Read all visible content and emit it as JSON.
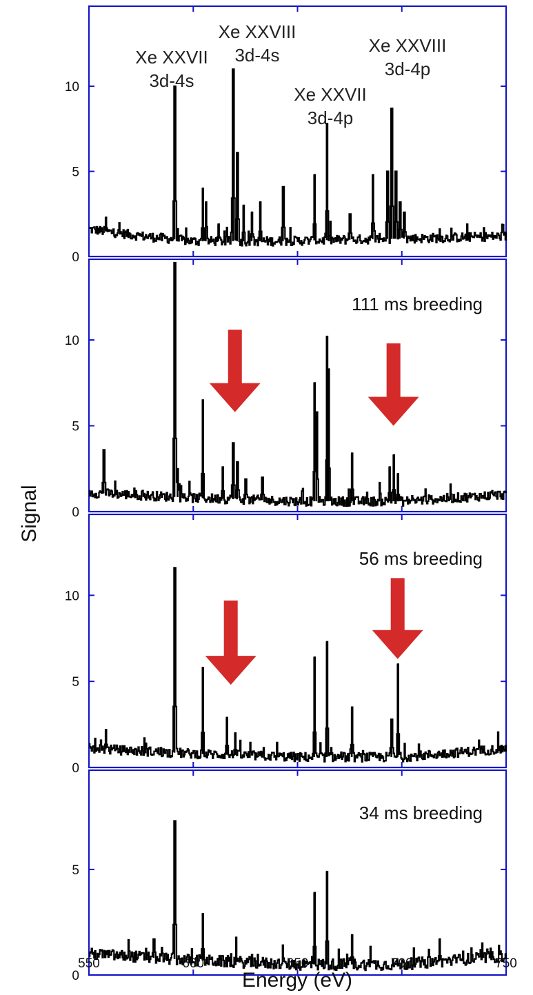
{
  "chart_data": {
    "type": "line",
    "xlabel": "Energy (eV)",
    "ylabel": "Signal",
    "xlim": [
      550,
      750
    ],
    "x_ticks": [
      550,
      600,
      650,
      700,
      750
    ],
    "colors": {
      "frame": "#1414c8",
      "trace": "#000000",
      "arrow": "#d42a2a"
    },
    "panels": [
      {
        "label": "",
        "ylim": [
          0,
          14.7
        ],
        "y_ticks": [
          0,
          5,
          10
        ],
        "baseline": [
          [
            550,
            1.6
          ],
          [
            575,
            1.2
          ],
          [
            600,
            0.9
          ],
          [
            640,
            0.9
          ],
          [
            680,
            1.0
          ],
          [
            720,
            1.1
          ],
          [
            750,
            1.2
          ]
        ],
        "peaks": [
          [
            558,
            2.3
          ],
          [
            591,
            10.0
          ],
          [
            604.5,
            4.0
          ],
          [
            606,
            3.2
          ],
          [
            612,
            1.9
          ],
          [
            619,
            11.0
          ],
          [
            621,
            6.1
          ],
          [
            624,
            3.0
          ],
          [
            628,
            2.6
          ],
          [
            632,
            3.2
          ],
          [
            643,
            4.1
          ],
          [
            658,
            4.8
          ],
          [
            664,
            7.8
          ],
          [
            675,
            2.5
          ],
          [
            686,
            4.8
          ],
          [
            693,
            5.0
          ],
          [
            695,
            8.7
          ],
          [
            697,
            5.0
          ],
          [
            699,
            3.2
          ],
          [
            701,
            2.6
          ]
        ],
        "annotations": [
          {
            "id": "xe27-3d4s",
            "lines": [
              "Xe XXVII",
              "3d-4s"
            ],
            "x": 591
          },
          {
            "id": "xe28-3d4s",
            "lines": [
              "Xe XXVIII",
              "3d-4s"
            ],
            "x": 619
          },
          {
            "id": "xe27-3d4p",
            "lines": [
              "Xe XXVII",
              "3d-4p"
            ],
            "x": 664
          },
          {
            "id": "xe28-3d4p",
            "lines": [
              "Xe XXVIII",
              "3d-4p"
            ],
            "x": 695
          }
        ],
        "arrows": []
      },
      {
        "label": "111 ms breeding",
        "ylim": [
          0,
          14.7
        ],
        "y_ticks": [
          0,
          5,
          10
        ],
        "baseline": [
          [
            550,
            1.1
          ],
          [
            600,
            0.8
          ],
          [
            650,
            0.6
          ],
          [
            700,
            0.6
          ],
          [
            750,
            1.0
          ]
        ],
        "peaks": [
          [
            557,
            3.6
          ],
          [
            591,
            14.5
          ],
          [
            592.5,
            2.5
          ],
          [
            604.5,
            6.5
          ],
          [
            614,
            2.6
          ],
          [
            619,
            4.0
          ],
          [
            621,
            2.9
          ],
          [
            625,
            1.9
          ],
          [
            633,
            2.0
          ],
          [
            658,
            7.5
          ],
          [
            659,
            5.8
          ],
          [
            664,
            10.2
          ],
          [
            664.8,
            8.3
          ],
          [
            676,
            3.4
          ],
          [
            694,
            2.6
          ],
          [
            696,
            3.3
          ],
          [
            698,
            2.2
          ]
        ],
        "annotations": [],
        "arrows": [
          {
            "x": 620,
            "y_top": 10.6,
            "y_tip": 5.8
          },
          {
            "x": 696,
            "y_top": 9.8,
            "y_tip": 5.0
          }
        ]
      },
      {
        "label": "56 ms breeding",
        "ylim": [
          0,
          14.7
        ],
        "y_ticks": [
          0,
          5,
          10
        ],
        "baseline": [
          [
            550,
            1.1
          ],
          [
            600,
            0.8
          ],
          [
            650,
            0.6
          ],
          [
            700,
            0.6
          ],
          [
            750,
            1.1
          ]
        ],
        "peaks": [
          [
            558,
            2.2
          ],
          [
            591,
            11.6
          ],
          [
            604.5,
            5.8
          ],
          [
            616,
            2.9
          ],
          [
            620,
            2.0
          ],
          [
            658,
            6.4
          ],
          [
            664,
            7.3
          ],
          [
            676,
            3.5
          ],
          [
            695,
            2.8
          ],
          [
            698,
            6.0
          ]
        ],
        "annotations": [],
        "arrows": [
          {
            "x": 618,
            "y_top": 9.7,
            "y_tip": 4.8
          },
          {
            "x": 698,
            "y_top": 11.0,
            "y_tip": 6.3
          }
        ]
      },
      {
        "label": "34 ms breeding",
        "ylim": [
          0,
          9.7
        ],
        "y_ticks": [
          0,
          5
        ],
        "baseline": [
          [
            550,
            1.0
          ],
          [
            600,
            0.7
          ],
          [
            650,
            0.5
          ],
          [
            700,
            0.5
          ],
          [
            750,
            0.9
          ]
        ],
        "peaks": [
          [
            581,
            1.7
          ],
          [
            591,
            7.3
          ],
          [
            604.5,
            2.9
          ],
          [
            658,
            3.9
          ],
          [
            664,
            4.9
          ],
          [
            676,
            1.9
          ],
          [
            718,
            1.7
          ]
        ],
        "annotations": [],
        "arrows": []
      }
    ]
  }
}
